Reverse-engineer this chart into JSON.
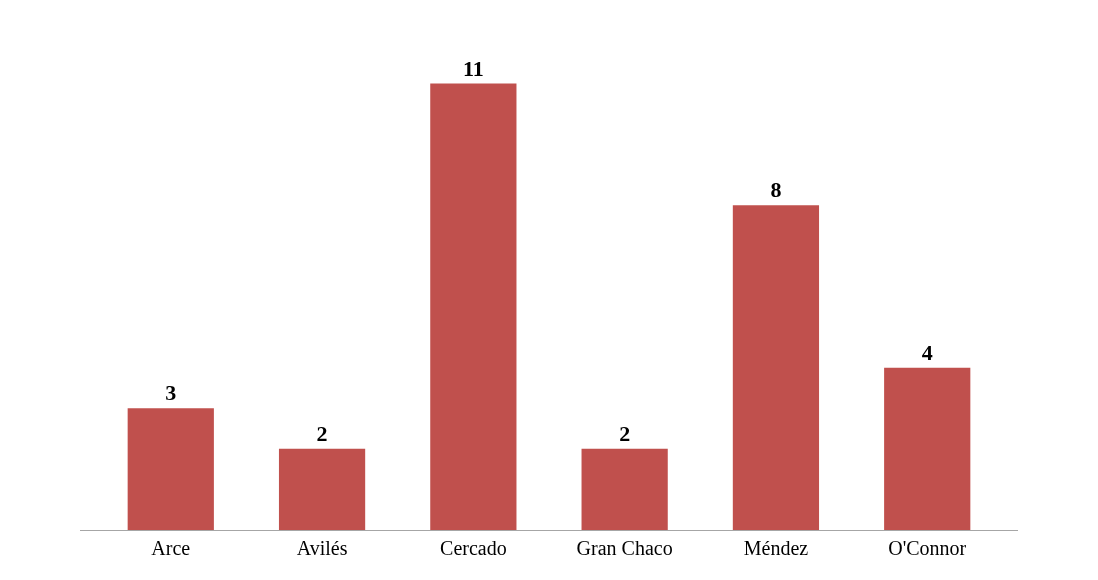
{
  "chart_data": {
    "type": "bar",
    "categories": [
      "Arce",
      "Avilés",
      "Cercado",
      "Gran Chaco",
      "Méndez",
      "O'Connor"
    ],
    "values": [
      3,
      2,
      11,
      2,
      8,
      4
    ],
    "color": "#c0504d",
    "data_labels": true,
    "tick_labels": "x",
    "legend": false
  }
}
